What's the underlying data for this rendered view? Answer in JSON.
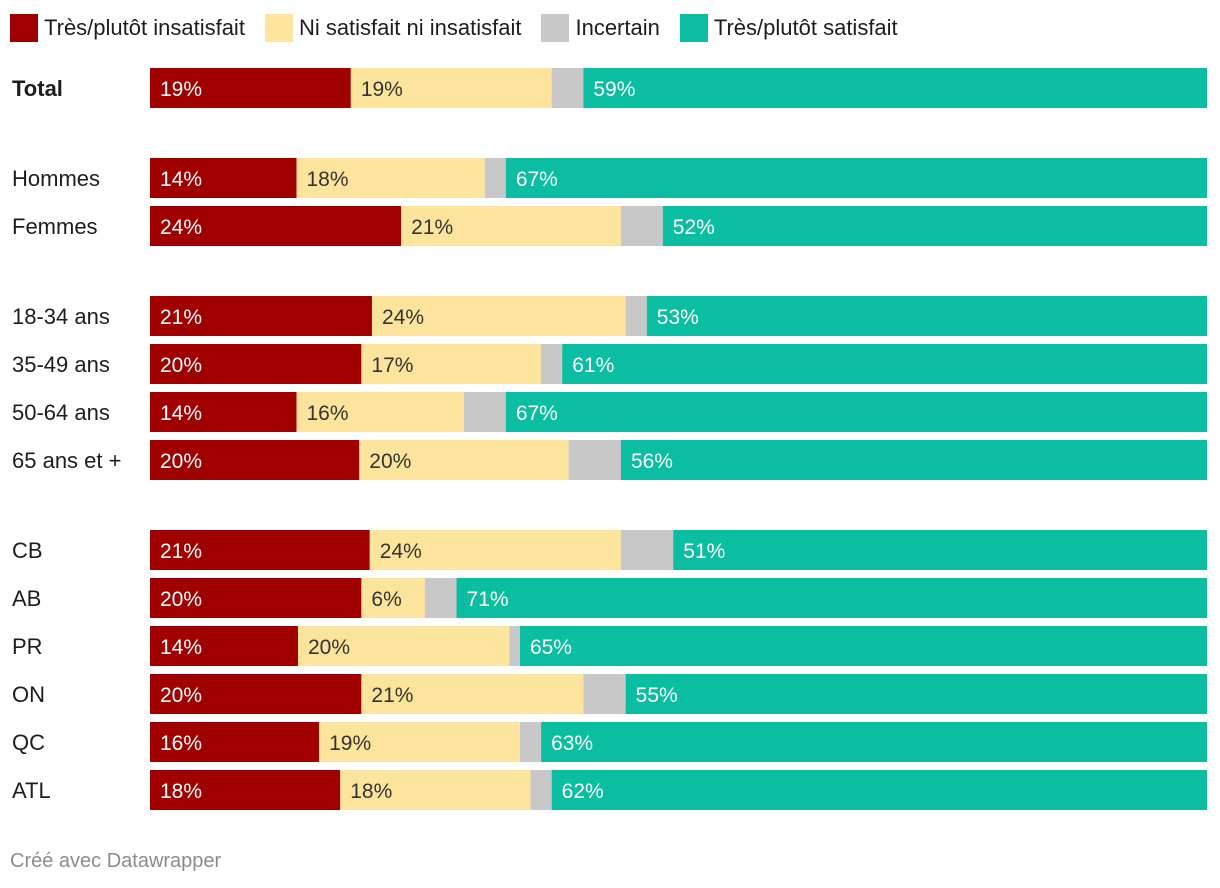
{
  "legend": [
    {
      "label": "Très/plutôt insatisfait",
      "color": "#a00000"
    },
    {
      "label": "Ni satisfait ni insatisfait",
      "color": "#fde49c"
    },
    {
      "label": "Incertain",
      "color": "#c8c8c8"
    },
    {
      "label": "Très/plutôt satisfait",
      "color": "#0bbda1"
    }
  ],
  "footer": "Créé avec Datawrapper",
  "chart_data": {
    "type": "bar",
    "orientation": "horizontal",
    "stacked": true,
    "title": "",
    "xlabel": "",
    "ylabel": "",
    "xlim": [
      0,
      100
    ],
    "legend_position": "top-left",
    "series": [
      {
        "name": "Très/plutôt insatisfait",
        "color": "#a00000",
        "label_color": "#ffffff"
      },
      {
        "name": "Ni satisfait ni insatisfait",
        "color": "#fde49c",
        "label_color": "#333333"
      },
      {
        "name": "Incertain",
        "color": "#c8c8c8",
        "label_color": "#333333"
      },
      {
        "name": "Très/plutôt satisfait",
        "color": "#0bbda1",
        "label_color": "#ffffff"
      }
    ],
    "rows": [
      {
        "label": "Total",
        "bold": true,
        "values": [
          19,
          19,
          3,
          59
        ],
        "labels": [
          "19%",
          "19%",
          "",
          "59%"
        ]
      },
      {
        "spacer": true
      },
      {
        "label": "Hommes",
        "values": [
          14,
          18,
          2,
          67
        ],
        "labels": [
          "14%",
          "18%",
          "",
          "67%"
        ]
      },
      {
        "label": "Femmes",
        "values": [
          24,
          21,
          4,
          52
        ],
        "labels": [
          "24%",
          "21%",
          "",
          "52%"
        ]
      },
      {
        "spacer": true
      },
      {
        "label": "18-34 ans",
        "values": [
          21,
          24,
          2,
          53
        ],
        "labels": [
          "21%",
          "24%",
          "",
          "53%"
        ]
      },
      {
        "label": "35-49 ans",
        "values": [
          20,
          17,
          2,
          61
        ],
        "labels": [
          "20%",
          "17%",
          "",
          "61%"
        ]
      },
      {
        "label": "50-64 ans",
        "values": [
          14,
          16,
          4,
          67
        ],
        "labels": [
          "14%",
          "16%",
          "",
          "67%"
        ]
      },
      {
        "label": "65 ans et +",
        "values": [
          20,
          20,
          5,
          56
        ],
        "labels": [
          "20%",
          "20%",
          "",
          "56%"
        ]
      },
      {
        "spacer": true
      },
      {
        "label": "CB",
        "values": [
          21,
          24,
          5,
          51
        ],
        "labels": [
          "21%",
          "24%",
          "",
          "51%"
        ]
      },
      {
        "label": "AB",
        "values": [
          20,
          6,
          3,
          71
        ],
        "labels": [
          "20%",
          "6%",
          "",
          "71%"
        ]
      },
      {
        "label": "PR",
        "values": [
          14,
          20,
          1,
          65
        ],
        "labels": [
          "14%",
          "20%",
          "",
          "65%"
        ]
      },
      {
        "label": "ON",
        "values": [
          20,
          21,
          4,
          55
        ],
        "labels": [
          "20%",
          "21%",
          "",
          "55%"
        ]
      },
      {
        "label": "QC",
        "values": [
          16,
          19,
          2,
          63
        ],
        "labels": [
          "16%",
          "19%",
          "",
          "63%"
        ]
      },
      {
        "label": "ATL",
        "values": [
          18,
          18,
          2,
          62
        ],
        "labels": [
          "18%",
          "18%",
          "",
          "62%"
        ]
      }
    ]
  }
}
